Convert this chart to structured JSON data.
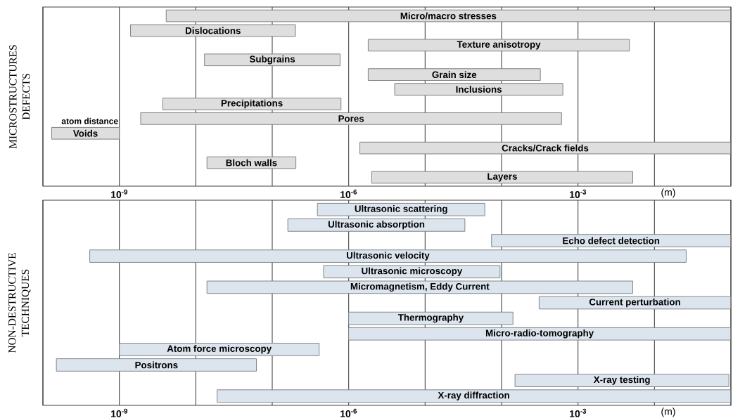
{
  "chart_data": [
    {
      "type": "bar",
      "orientation": "horizontal",
      "ylabel": "MICROSTRUCTURES DEFECTS",
      "xlabel": "(m)",
      "log": "x",
      "grid": "x",
      "color": "#dedede",
      "categories": [
        "Micro/macro stresses",
        "Dislocations",
        "Texture anisotropy",
        "Subgrains",
        "Grain size",
        "Inclusions",
        "Precipitations",
        "Pores",
        "Voids",
        "Cracks/Crack fields",
        "Bloch walls",
        "Layers"
      ],
      "base": [
        4.1e-09,
        1.4e-09,
        1.8e-06,
        1.3e-08,
        1.8e-06,
        4e-06,
        3.7e-09,
        1.9e-09,
        1.3e-10,
        1.4e-06,
        1.4e-08,
        2e-06
      ],
      "values": [
        0.099,
        2e-07,
        0.0047,
        7.6e-07,
        0.00032,
        0.00063,
        7.9e-07,
        0.00061,
        8.7e-10,
        0.099,
        1.9e-07,
        0.0052
      ],
      "annotations": [
        {
          "text": "atom distance",
          "x": 1e-09,
          "y": "Voids"
        }
      ],
      "xlim": [
        1e-10,
        0.1
      ],
      "xticks": [
        {
          "value": 1e-10,
          "label": null
        },
        {
          "value": 1e-09,
          "label": "10$^{-9}$"
        },
        {
          "value": 1e-08,
          "label": null
        },
        {
          "value": 1e-07,
          "label": null
        },
        {
          "value": 1e-06,
          "label": "10$^{-6}$"
        },
        {
          "value": 1e-05,
          "label": null
        },
        {
          "value": 0.0001,
          "label": null
        },
        {
          "value": 0.001,
          "label": "10$^{-3}$"
        },
        {
          "value": 0.01,
          "label": null
        },
        {
          "value": 0.1,
          "label": null
        }
      ]
    },
    {
      "type": "bar",
      "orientation": "horizontal",
      "ylabel": "NON-DESTRUCTIVE TECHNIQUES",
      "xlabel": "(m)",
      "log": "x",
      "grid": "x",
      "color": "#dce5ee",
      "categories": [
        "Ultrasonic scattering",
        "Ultrasonic absorption",
        "Echo defect detection",
        "Ultrasonic velocity",
        "Ultrasonic microscopy",
        "Micromagnetism,  Eddy Current",
        "Current perturbation",
        "Thermography",
        "Micro-radio-tomography",
        "Atom force microscopy",
        "Positrons",
        "X-ray testing",
        "X-ray diffraction"
      ],
      "base": [
        3.9e-07,
        1.6e-07,
        7.4e-05,
        4.1e-10,
        4.7e-07,
        1.4e-08,
        0.00031,
        1e-06,
        1e-06,
        1e-09,
        1.5e-10,
        0.00015,
        1.9e-08
      ],
      "values": [
        6e-05,
        3.3e-05,
        0.099,
        0.026,
        9.5e-05,
        0.0052,
        0.099,
        0.00014,
        0.099,
        4.1e-07,
        6.2e-08,
        0.094,
        0.099
      ],
      "xlim": [
        1e-10,
        0.1
      ],
      "xticks": [
        {
          "value": 1e-10,
          "label": null
        },
        {
          "value": 1e-09,
          "label": "10$^{-9}$"
        },
        {
          "value": 1e-08,
          "label": null
        },
        {
          "value": 1e-07,
          "label": null
        },
        {
          "value": 1e-06,
          "label": "10$^{-6}$"
        },
        {
          "value": 1e-05,
          "label": null
        },
        {
          "value": 0.0001,
          "label": null
        },
        {
          "value": 0.001,
          "label": "10$^{-3}$"
        },
        {
          "value": 0.01,
          "label": null
        },
        {
          "value": 0.1,
          "label": null
        }
      ]
    }
  ]
}
